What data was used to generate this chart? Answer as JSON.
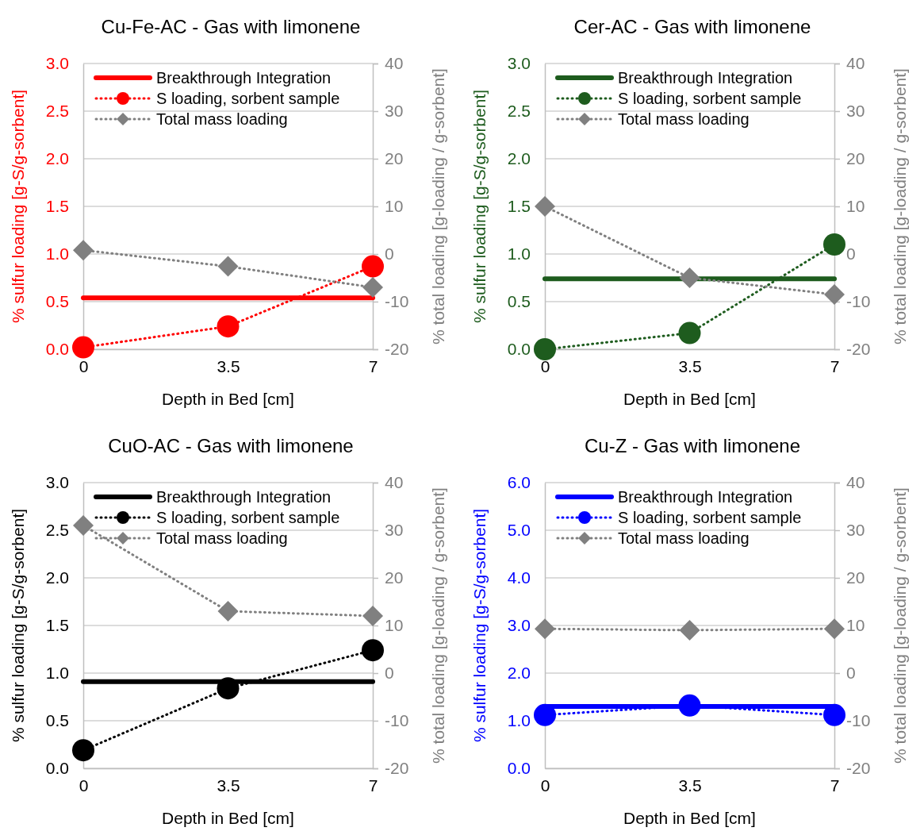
{
  "chart_data": [
    {
      "type": "line",
      "title": "Cu-Fe-AC - Gas with limonene",
      "xlabel": "Depth in Bed [cm]",
      "ylabel": "% sulfur loading [g-S/g-sorbent]",
      "y2label": "% total loading [g-loading / g-sorbent]",
      "xlim": [
        0,
        7
      ],
      "xticks": [
        0,
        3.5,
        7
      ],
      "ylim": [
        0,
        3
      ],
      "yticks": [
        {
          "value": 0,
          "label": "0.0"
        },
        {
          "value": 0.5,
          "label": "0.5"
        },
        {
          "value": 1,
          "label": "1.0"
        },
        {
          "value": 1.5,
          "label": "1.5"
        },
        {
          "value": 2,
          "label": "2.0"
        },
        {
          "value": 2.5,
          "label": "2.5"
        },
        {
          "value": 3,
          "label": "3.0"
        }
      ],
      "y2lim": [
        -20,
        40
      ],
      "y2ticks": [
        -20,
        -10,
        0,
        10,
        20,
        30,
        40
      ],
      "grid": "y",
      "legend": "top left",
      "series": [
        {
          "name": "Breakthrough Integration",
          "color": "#ff0000",
          "x": [
            0,
            7
          ],
          "values": [
            0.54,
            0.54
          ],
          "line_style": "solid",
          "marker": "none"
        },
        {
          "name": "S loading, sorbent sample",
          "color": "#ff0000",
          "x": [
            0,
            3.5,
            7
          ],
          "values": [
            0.02,
            0.24,
            0.87
          ],
          "line_style": "dotted",
          "marker": "circle"
        },
        {
          "name": "Total mass loading",
          "color": "#808080",
          "x": [
            0,
            3.5,
            7
          ],
          "values": [
            0.8,
            -2.6,
            -7
          ],
          "axis": "y2",
          "line_style": "dotted",
          "marker": "diamond"
        }
      ]
    },
    {
      "type": "line",
      "title": "Cer-AC - Gas with limonene",
      "xlabel": "Depth in Bed [cm]",
      "ylabel": "% sulfur loading [g-S/g-sorbent]",
      "y2label": "% total loading [g-loading / g-sorbent]",
      "xlim": [
        0,
        7
      ],
      "xticks": [
        0,
        3.5,
        7
      ],
      "ylim": [
        0,
        3
      ],
      "yticks": [
        {
          "value": 0,
          "label": "0.0"
        },
        {
          "value": 0.5,
          "label": "0.5"
        },
        {
          "value": 1,
          "label": "1.0"
        },
        {
          "value": 1.5,
          "label": "1.5"
        },
        {
          "value": 2,
          "label": "2.0"
        },
        {
          "value": 2.5,
          "label": "2.5"
        },
        {
          "value": 3,
          "label": "3.0"
        }
      ],
      "y2lim": [
        -20,
        40
      ],
      "y2ticks": [
        -20,
        -10,
        0,
        10,
        20,
        30,
        40
      ],
      "grid": "y",
      "legend": "top left",
      "series": [
        {
          "name": "Breakthrough Integration",
          "color": "#1e5c1e",
          "x": [
            0,
            7
          ],
          "values": [
            0.74,
            0.74
          ],
          "line_style": "solid",
          "marker": "none"
        },
        {
          "name": "S loading, sorbent sample",
          "color": "#1e5c1e",
          "x": [
            0,
            3.5,
            7
          ],
          "values": [
            0,
            0.17,
            1.1
          ],
          "line_style": "dotted",
          "marker": "circle"
        },
        {
          "name": "Total mass loading",
          "color": "#808080",
          "x": [
            0,
            3.5,
            7
          ],
          "values": [
            10,
            -5,
            -8.5
          ],
          "axis": "y2",
          "line_style": "dotted",
          "marker": "diamond"
        }
      ]
    },
    {
      "type": "line",
      "title": "CuO-AC - Gas with limonene",
      "xlabel": "Depth in Bed [cm]",
      "ylabel": "% sulfur loading [g-S/g-sorbent]",
      "y2label": "% total loading [g-loading / g-sorbent]",
      "xlim": [
        0,
        7
      ],
      "xticks": [
        0,
        3.5,
        7
      ],
      "ylim": [
        0,
        3
      ],
      "yticks": [
        {
          "value": 0,
          "label": "0.0"
        },
        {
          "value": 0.5,
          "label": "0.5"
        },
        {
          "value": 1,
          "label": "1.0"
        },
        {
          "value": 1.5,
          "label": "1.5"
        },
        {
          "value": 2,
          "label": "2.0"
        },
        {
          "value": 2.5,
          "label": "2.5"
        },
        {
          "value": 3,
          "label": "3.0"
        }
      ],
      "y2lim": [
        -20,
        40
      ],
      "y2ticks": [
        -20,
        -10,
        0,
        10,
        20,
        30,
        40
      ],
      "grid": "y",
      "legend": "top left",
      "series": [
        {
          "name": "Breakthrough Integration",
          "color": "#000000",
          "x": [
            0,
            7
          ],
          "values": [
            0.91,
            0.91
          ],
          "line_style": "solid",
          "marker": "none"
        },
        {
          "name": "S loading, sorbent sample",
          "color": "#000000",
          "x": [
            0,
            3.5,
            7
          ],
          "values": [
            0.19,
            0.84,
            1.24
          ],
          "line_style": "dotted",
          "marker": "circle"
        },
        {
          "name": "Total mass loading",
          "color": "#808080",
          "x": [
            0,
            3.5,
            7
          ],
          "values": [
            31,
            13,
            12
          ],
          "axis": "y2",
          "line_style": "dotted",
          "marker": "diamond"
        }
      ]
    },
    {
      "type": "line",
      "title": "Cu-Z - Gas with limonene",
      "xlabel": "Depth in Bed [cm]",
      "ylabel": "% sulfur loading [g-S/g-sorbent]",
      "y2label": "% total loading [g-loading / g-sorbent]",
      "xlim": [
        0,
        7
      ],
      "xticks": [
        0,
        3.5,
        7
      ],
      "ylim": [
        0,
        6
      ],
      "yticks": [
        {
          "value": 0,
          "label": "0.0"
        },
        {
          "value": 1,
          "label": "1.0"
        },
        {
          "value": 2,
          "label": "2.0"
        },
        {
          "value": 3,
          "label": "3.0"
        },
        {
          "value": 4,
          "label": "4.0"
        },
        {
          "value": 5,
          "label": "5.0"
        },
        {
          "value": 6,
          "label": "6.0"
        }
      ],
      "y2lim": [
        -20,
        40
      ],
      "y2ticks": [
        -20,
        -10,
        0,
        10,
        20,
        30,
        40
      ],
      "grid": "y",
      "legend": "top left",
      "series": [
        {
          "name": "Breakthrough Integration",
          "color": "#0000ff",
          "x": [
            0,
            7
          ],
          "values": [
            1.3,
            1.3
          ],
          "line_style": "solid",
          "marker": "none"
        },
        {
          "name": "S loading, sorbent sample",
          "color": "#0000ff",
          "x": [
            0,
            3.5,
            7
          ],
          "values": [
            1.12,
            1.32,
            1.12
          ],
          "line_style": "dotted",
          "marker": "circle"
        },
        {
          "name": "Total mass loading",
          "color": "#808080",
          "x": [
            0,
            3.5,
            7
          ],
          "values": [
            9.3,
            9,
            9.3
          ],
          "axis": "y2",
          "line_style": "dotted",
          "marker": "diamond"
        }
      ]
    }
  ]
}
